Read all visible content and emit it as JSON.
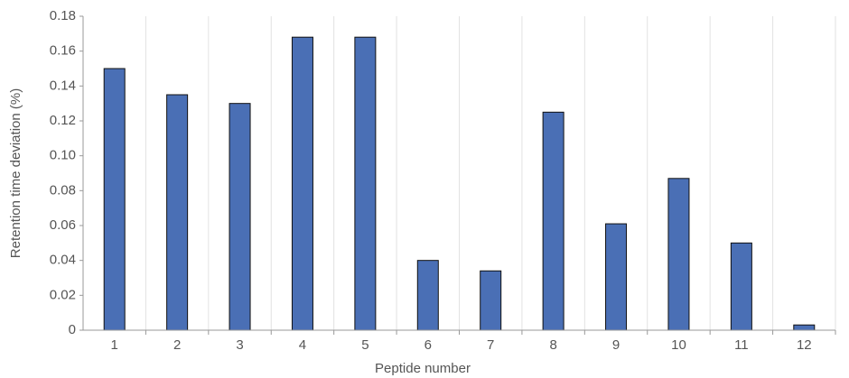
{
  "chart_data": {
    "type": "bar",
    "x_label": "Peptide number",
    "y_label": "Retention time deviation (%)",
    "categories": [
      "1",
      "2",
      "3",
      "4",
      "5",
      "6",
      "7",
      "8",
      "9",
      "10",
      "11",
      "12"
    ],
    "values": [
      0.15,
      0.135,
      0.13,
      0.168,
      0.168,
      0.04,
      0.034,
      0.125,
      0.061,
      0.087,
      0.05,
      0.003
    ],
    "color": "#4a6fb5",
    "ylim": [
      0,
      0.18
    ],
    "yticks": [
      0,
      0.02,
      0.04,
      0.06,
      0.08,
      {
        "value": 0.1,
        "label": "0.10"
      },
      0.12,
      0.14,
      0.16,
      0.18
    ],
    "grid": true
  }
}
